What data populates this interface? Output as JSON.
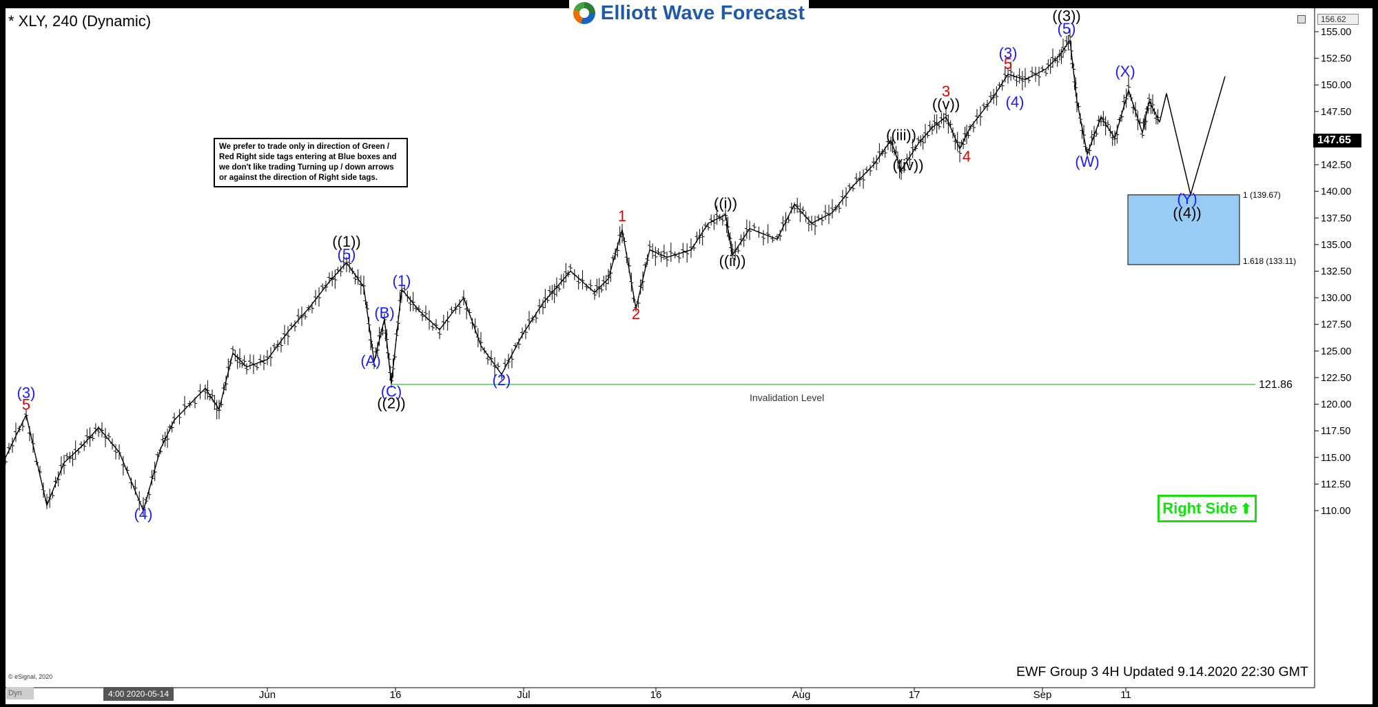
{
  "title": "* XLY, 240 (Dynamic)",
  "logo_text": "Elliott Wave Forecast",
  "note": "We prefer to trade only in direction of Green / Red Right side tags entering at Blue boxes and we don't like trading Turning up / down arrows or against the direction of Right side tags.",
  "right_side_label": "Right Side",
  "footer": "EWF Group 3 4H Updated 9.14.2020 22:30 GMT",
  "copyright": "© eSignal, 2020",
  "current_price": "147.65",
  "top_price": "156.62",
  "time_tag": "4:00 2020-05-14",
  "dyn_tag": "Dyn",
  "colors": {
    "invalidation_line": "#22dd22",
    "blue_box": "#99ccf5",
    "wave_blue": "#1a1aff",
    "wave_red": "#e00000",
    "wave_black": "#000000",
    "right_side": "#16e00e"
  },
  "chart_data": {
    "type": "line",
    "symbol": "XLY",
    "interval": "240",
    "ylim": [
      109.0,
      156.62
    ],
    "y_ticks": [
      "155.00",
      "152.50",
      "150.00",
      "147.50",
      "145.00",
      "142.50",
      "140.00",
      "137.50",
      "135.00",
      "132.50",
      "130.00",
      "127.50",
      "125.00",
      "122.50",
      "120.00",
      "117.50",
      "115.00",
      "112.50",
      "110.00"
    ],
    "x_ticks": [
      "Jun",
      "16",
      "Jul",
      "16",
      "Aug",
      "17",
      "Sep",
      "11"
    ],
    "price_series": [
      {
        "x": 0.0,
        "y": 115.0
      },
      {
        "x": 0.03,
        "y": 119.0
      },
      {
        "x": 0.06,
        "y": 110.5
      },
      {
        "x": 0.085,
        "y": 114.5
      },
      {
        "x": 0.11,
        "y": 116.0
      },
      {
        "x": 0.135,
        "y": 117.8
      },
      {
        "x": 0.165,
        "y": 115.5
      },
      {
        "x": 0.2,
        "y": 110.0
      },
      {
        "x": 0.225,
        "y": 115.8
      },
      {
        "x": 0.245,
        "y": 118.5
      },
      {
        "x": 0.29,
        "y": 121.5
      },
      {
        "x": 0.31,
        "y": 119.5
      },
      {
        "x": 0.33,
        "y": 124.8
      },
      {
        "x": 0.35,
        "y": 123.5
      },
      {
        "x": 0.38,
        "y": 124.2
      },
      {
        "x": 0.41,
        "y": 126.8
      },
      {
        "x": 0.44,
        "y": 129.0
      },
      {
        "x": 0.47,
        "y": 131.5
      },
      {
        "x": 0.495,
        "y": 133.3
      },
      {
        "x": 0.52,
        "y": 131.0
      },
      {
        "x": 0.535,
        "y": 124.0
      },
      {
        "x": 0.55,
        "y": 128.0
      },
      {
        "x": 0.56,
        "y": 121.9
      },
      {
        "x": 0.575,
        "y": 130.8
      },
      {
        "x": 0.6,
        "y": 128.8
      },
      {
        "x": 0.63,
        "y": 127.0
      },
      {
        "x": 0.665,
        "y": 130.0
      },
      {
        "x": 0.69,
        "y": 125.5
      },
      {
        "x": 0.72,
        "y": 122.8
      },
      {
        "x": 0.75,
        "y": 126.5
      },
      {
        "x": 0.78,
        "y": 129.5
      },
      {
        "x": 0.8,
        "y": 131.0
      },
      {
        "x": 0.82,
        "y": 132.5
      },
      {
        "x": 0.855,
        "y": 130.5
      },
      {
        "x": 0.875,
        "y": 131.8
      },
      {
        "x": 0.895,
        "y": 136.4
      },
      {
        "x": 0.915,
        "y": 129.0
      },
      {
        "x": 0.935,
        "y": 134.5
      },
      {
        "x": 0.96,
        "y": 133.8
      },
      {
        "x": 0.995,
        "y": 134.5
      },
      {
        "x": 1.02,
        "y": 137.0
      },
      {
        "x": 1.045,
        "y": 137.8
      },
      {
        "x": 1.055,
        "y": 134.0
      },
      {
        "x": 1.08,
        "y": 136.5
      },
      {
        "x": 1.12,
        "y": 135.5
      },
      {
        "x": 1.145,
        "y": 138.8
      },
      {
        "x": 1.17,
        "y": 137.0
      },
      {
        "x": 1.2,
        "y": 138.0
      },
      {
        "x": 1.23,
        "y": 140.5
      },
      {
        "x": 1.26,
        "y": 142.5
      },
      {
        "x": 1.285,
        "y": 144.8
      },
      {
        "x": 1.3,
        "y": 142.0
      },
      {
        "x": 1.325,
        "y": 144.5
      },
      {
        "x": 1.345,
        "y": 146.0
      },
      {
        "x": 1.365,
        "y": 147.0
      },
      {
        "x": 1.385,
        "y": 144.0
      },
      {
        "x": 1.4,
        "y": 146.0
      },
      {
        "x": 1.43,
        "y": 148.5
      },
      {
        "x": 1.455,
        "y": 151.0
      },
      {
        "x": 1.48,
        "y": 150.5
      },
      {
        "x": 1.51,
        "y": 151.5
      },
      {
        "x": 1.53,
        "y": 152.8
      },
      {
        "x": 1.545,
        "y": 154.2
      },
      {
        "x": 1.555,
        "y": 148.5
      },
      {
        "x": 1.57,
        "y": 143.5
      },
      {
        "x": 1.59,
        "y": 147.0
      },
      {
        "x": 1.61,
        "y": 145.0
      },
      {
        "x": 1.63,
        "y": 149.5
      },
      {
        "x": 1.65,
        "y": 145.5
      },
      {
        "x": 1.66,
        "y": 148.5
      },
      {
        "x": 1.675,
        "y": 146.5
      }
    ],
    "projection": [
      {
        "x": 1.675,
        "y": 146.5
      },
      {
        "x": 1.685,
        "y": 149.2
      },
      {
        "x": 1.72,
        "y": 139.7
      },
      {
        "x": 1.77,
        "y": 150.8
      }
    ],
    "invalidation_level": {
      "value": 121.86,
      "label": "121.86",
      "text": "Invalidation Level"
    },
    "blue_box": {
      "top": 139.67,
      "bottom": 133.11,
      "top_label": "1 (139.67)",
      "bottom_label": "1.618 (133.11)"
    },
    "wave_labels": [
      {
        "text": "(3)",
        "x": 0.03,
        "y": 120.6,
        "color": "blue"
      },
      {
        "text": "5",
        "x": 0.03,
        "y": 119.5,
        "color": "red"
      },
      {
        "text": "(4)",
        "x": 0.2,
        "y": 109.2,
        "color": "blue"
      },
      {
        "text": "((1))",
        "x": 0.495,
        "y": 134.8,
        "color": "black"
      },
      {
        "text": "(5)",
        "x": 0.495,
        "y": 133.6,
        "color": "blue"
      },
      {
        "text": "(1)",
        "x": 0.575,
        "y": 131.1,
        "color": "blue"
      },
      {
        "text": "(B)",
        "x": 0.55,
        "y": 128.1,
        "color": "blue"
      },
      {
        "text": "(A)",
        "x": 0.53,
        "y": 123.6,
        "color": "blue"
      },
      {
        "text": "(C)",
        "x": 0.56,
        "y": 120.7,
        "color": "blue"
      },
      {
        "text": "((2))",
        "x": 0.56,
        "y": 119.6,
        "color": "black"
      },
      {
        "text": "(2)",
        "x": 0.72,
        "y": 121.8,
        "color": "blue"
      },
      {
        "text": "1",
        "x": 0.895,
        "y": 137.2,
        "color": "red"
      },
      {
        "text": "2",
        "x": 0.915,
        "y": 128.0,
        "color": "red"
      },
      {
        "text": "((i))",
        "x": 1.045,
        "y": 138.4,
        "color": "black"
      },
      {
        "text": "((ii))",
        "x": 1.055,
        "y": 133.0,
        "color": "black"
      },
      {
        "text": "((iii))",
        "x": 1.3,
        "y": 144.8,
        "color": "black"
      },
      {
        "text": "((iv))",
        "x": 1.31,
        "y": 142.0,
        "color": "black"
      },
      {
        "text": "((v))",
        "x": 1.365,
        "y": 147.7,
        "color": "black"
      },
      {
        "text": "3",
        "x": 1.365,
        "y": 148.9,
        "color": "red"
      },
      {
        "text": "4",
        "x": 1.395,
        "y": 142.8,
        "color": "red"
      },
      {
        "text": "(3)",
        "x": 1.455,
        "y": 152.5,
        "color": "blue"
      },
      {
        "text": "5",
        "x": 1.455,
        "y": 151.5,
        "color": "red"
      },
      {
        "text": "(4)",
        "x": 1.465,
        "y": 147.9,
        "color": "blue"
      },
      {
        "text": "((3))",
        "x": 1.54,
        "y": 156.0,
        "color": "black"
      },
      {
        "text": "(5)",
        "x": 1.54,
        "y": 154.8,
        "color": "blue"
      },
      {
        "text": "(W)",
        "x": 1.57,
        "y": 142.3,
        "color": "blue"
      },
      {
        "text": "(X)",
        "x": 1.625,
        "y": 150.8,
        "color": "blue"
      },
      {
        "text": "(Y)",
        "x": 1.715,
        "y": 138.8,
        "color": "blue"
      },
      {
        "text": "((4))",
        "x": 1.715,
        "y": 137.5,
        "color": "black"
      }
    ],
    "grid": false
  }
}
